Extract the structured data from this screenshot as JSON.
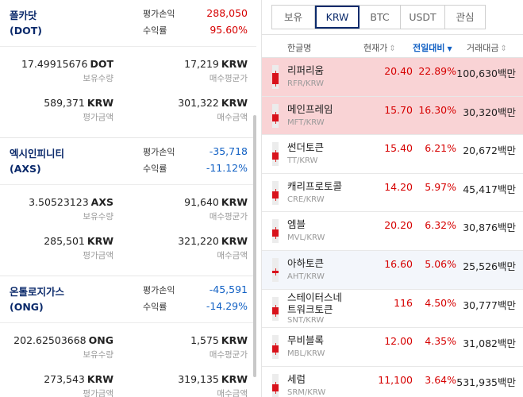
{
  "holdings": [
    {
      "name_line1": "폴카닷",
      "name_line2": "(DOT)",
      "pl_label": "평가손익",
      "pl_value": "288,050",
      "rate_label": "수익률",
      "rate_value": "95.60%",
      "direction": "up",
      "qty": "17.49915676",
      "qty_unit": "DOT",
      "qty_label": "보유수량",
      "avg": "17,219",
      "avg_unit": "KRW",
      "avg_label": "매수평균가",
      "eval": "589,371",
      "eval_unit": "KRW",
      "eval_label": "평가금액",
      "buy": "301,322",
      "buy_unit": "KRW",
      "buy_label": "매수금액"
    },
    {
      "name_line1": "엑시인피니티",
      "name_line2": "(AXS)",
      "pl_label": "평가손익",
      "pl_value": "-35,718",
      "rate_label": "수익률",
      "rate_value": "-11.12%",
      "direction": "down",
      "qty": "3.50523123",
      "qty_unit": "AXS",
      "qty_label": "보유수량",
      "avg": "91,640",
      "avg_unit": "KRW",
      "avg_label": "매수평균가",
      "eval": "285,501",
      "eval_unit": "KRW",
      "eval_label": "평가금액",
      "buy": "321,220",
      "buy_unit": "KRW",
      "buy_label": "매수금액"
    },
    {
      "name_line1": "온톨로지가스",
      "name_line2": "(ONG)",
      "pl_label": "평가손익",
      "pl_value": "-45,591",
      "rate_label": "수익률",
      "rate_value": "-14.29%",
      "direction": "down",
      "qty": "202.62503668",
      "qty_unit": "ONG",
      "qty_label": "보유수량",
      "avg": "1,575",
      "avg_unit": "KRW",
      "avg_label": "매수평균가",
      "eval": "273,543",
      "eval_unit": "KRW",
      "eval_label": "평가금액",
      "buy": "319,135",
      "buy_unit": "KRW",
      "buy_label": "매수금액"
    }
  ],
  "tabs": [
    {
      "label": "보유",
      "active": false
    },
    {
      "label": "KRW",
      "active": true
    },
    {
      "label": "BTC",
      "active": false
    },
    {
      "label": "USDT",
      "active": false
    },
    {
      "label": "관심",
      "active": false
    }
  ],
  "table_headers": {
    "name": "한글명",
    "price": "현재가",
    "change": "전일대비",
    "volume": "거래대금"
  },
  "markets": [
    {
      "name": "리퍼리움",
      "symbol": "RFR/KRW",
      "price": "20.40",
      "change": "22.89%",
      "volume": "100,630",
      "unit": "백만",
      "highlight": true,
      "candle_fill": 0.45
    },
    {
      "name": "메인프레임",
      "symbol": "MFT/KRW",
      "price": "15.70",
      "change": "16.30%",
      "volume": "30,320",
      "unit": "백만",
      "highlight": true,
      "candle_fill": 0.3
    },
    {
      "name": "썬더토큰",
      "symbol": "TT/KRW",
      "price": "15.40",
      "change": "6.21%",
      "volume": "20,672",
      "unit": "백만",
      "highlight": false,
      "candle_fill": 0.3
    },
    {
      "name": "캐리프로토콜",
      "symbol": "CRE/KRW",
      "price": "14.20",
      "change": "5.97%",
      "volume": "45,417",
      "unit": "백만",
      "highlight": false,
      "candle_fill": 0.3
    },
    {
      "name": "엠블",
      "symbol": "MVL/KRW",
      "price": "20.20",
      "change": "6.32%",
      "volume": "30,876",
      "unit": "백만",
      "highlight": false,
      "candle_fill": 0.3
    },
    {
      "name": "아하토큰",
      "symbol": "AHT/KRW",
      "price": "16.60",
      "change": "5.06%",
      "volume": "25,526",
      "unit": "백만",
      "highlight": false,
      "selected": true,
      "candle_fill": 0.1
    },
    {
      "name": "스테이터스네트워크토큰",
      "name_a": "스테이터스네",
      "name_b": "트워크토큰",
      "symbol": "SNT/KRW",
      "price": "116",
      "change": "4.50%",
      "volume": "30,777",
      "unit": "백만",
      "highlight": false,
      "candle_fill": 0.3
    },
    {
      "name": "무비블록",
      "symbol": "MBL/KRW",
      "price": "12.00",
      "change": "4.35%",
      "volume": "31,082",
      "unit": "백만",
      "highlight": false,
      "candle_fill": 0.3
    },
    {
      "name": "세럼",
      "symbol": "SRM/KRW",
      "price": "11,100",
      "change": "3.64%",
      "volume": "531,935",
      "unit": "백만",
      "highlight": false,
      "candle_fill": 0.3
    }
  ],
  "colors": {
    "up": "#d60000",
    "down": "#1261c4",
    "highlight": "#f9d3d5",
    "accent": "#0b2a6b"
  }
}
